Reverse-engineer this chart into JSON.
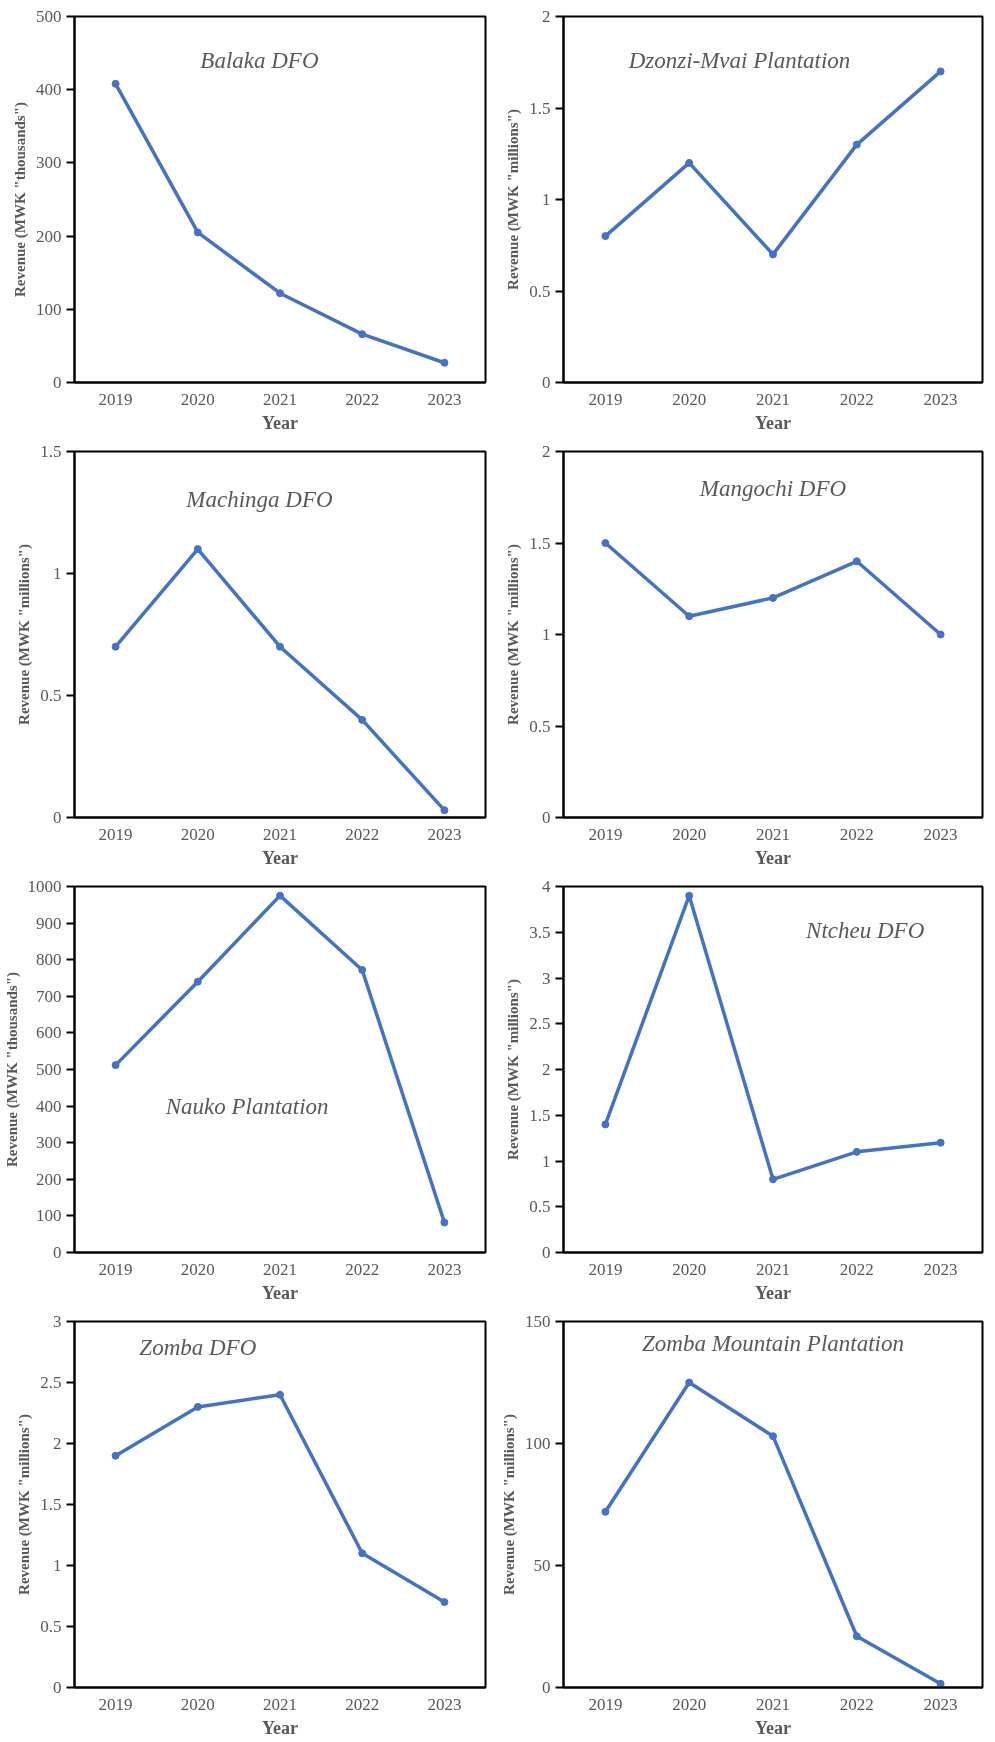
{
  "chart_data": [
    {
      "type": "line",
      "title": "Balaka DFO",
      "xlabel": "Year",
      "ylabel": "Revenue (MWK \"thousands\")",
      "categories": [
        "2019",
        "2020",
        "2021",
        "2022",
        "2023"
      ],
      "series": [
        {
          "color": "#4472c4",
          "values": [
            408,
            205,
            122,
            66,
            27
          ]
        }
      ],
      "ylim": [
        0,
        500
      ],
      "yticks": [
        0,
        100,
        200,
        300,
        400,
        500
      ],
      "marker": "circle",
      "grid": false
    },
    {
      "type": "line",
      "title": "Dzonzi-Mvai Plantation",
      "xlabel": "Year",
      "ylabel": "Revenue (MWK \"millions\")",
      "categories": [
        "2019",
        "2020",
        "2021",
        "2022",
        "2023"
      ],
      "series": [
        {
          "color": "#4472c4",
          "values": [
            0.8,
            1.2,
            0.7,
            1.3,
            1.7
          ]
        }
      ],
      "ylim": [
        0,
        2
      ],
      "yticks": [
        0,
        0.5,
        1,
        1.5,
        2
      ],
      "marker": "circle",
      "grid": false
    },
    {
      "type": "line",
      "title": "Machinga DFO",
      "xlabel": "Year",
      "ylabel": "Revenue (MWK \"millions\")",
      "categories": [
        "2019",
        "2020",
        "2021",
        "2022",
        "2023"
      ],
      "series": [
        {
          "color": "#4472c4",
          "values": [
            0.7,
            1.1,
            0.7,
            0.4,
            0.03
          ]
        }
      ],
      "ylim": [
        0,
        1.5
      ],
      "yticks": [
        0,
        0.5,
        1,
        1.5
      ],
      "marker": "circle",
      "grid": false
    },
    {
      "type": "line",
      "title": "Mangochi DFO",
      "xlabel": "Year",
      "ylabel": "Revenue (MWK \"millions\")",
      "categories": [
        "2019",
        "2020",
        "2021",
        "2022",
        "2023"
      ],
      "series": [
        {
          "color": "#4472c4",
          "values": [
            1.5,
            1.1,
            1.2,
            1.4,
            1.0
          ]
        }
      ],
      "ylim": [
        0,
        2
      ],
      "yticks": [
        0,
        0.5,
        1,
        1.5,
        2
      ],
      "marker": "circle",
      "grid": false
    },
    {
      "type": "line",
      "title": "Nauko Plantation",
      "xlabel": "Year",
      "ylabel": "Revenue (MWK \"thousands\")",
      "categories": [
        "2019",
        "2020",
        "2021",
        "2022",
        "2023"
      ],
      "series": [
        {
          "color": "#4472c4",
          "values": [
            512,
            740,
            975,
            772,
            82
          ]
        }
      ],
      "ylim": [
        0,
        1000
      ],
      "yticks": [
        0,
        100,
        200,
        300,
        400,
        500,
        600,
        700,
        800,
        900,
        1000
      ],
      "marker": "circle",
      "grid": false
    },
    {
      "type": "line",
      "title": "Ntcheu DFO",
      "xlabel": "Year",
      "ylabel": "Revenue (MWK \"millions\")",
      "categories": [
        "2019",
        "2020",
        "2021",
        "2022",
        "2023"
      ],
      "series": [
        {
          "color": "#4472c4",
          "values": [
            1.4,
            3.9,
            0.8,
            1.1,
            1.2
          ]
        }
      ],
      "ylim": [
        0,
        4
      ],
      "yticks": [
        0,
        0.5,
        1,
        1.5,
        2,
        2.5,
        3,
        3.5,
        4
      ],
      "marker": "circle",
      "grid": false
    },
    {
      "type": "line",
      "title": "Zomba DFO",
      "xlabel": "Year",
      "ylabel": "Revenue (MWK \"millions\")",
      "categories": [
        "2019",
        "2020",
        "2021",
        "2022",
        "2023"
      ],
      "series": [
        {
          "color": "#4472c4",
          "values": [
            1.9,
            2.3,
            2.4,
            1.1,
            0.7
          ]
        }
      ],
      "ylim": [
        0,
        3
      ],
      "yticks": [
        0,
        0.5,
        1,
        1.5,
        2,
        2.5,
        3
      ],
      "marker": "circle",
      "grid": false
    },
    {
      "type": "line",
      "title": "Zomba Mountain Plantation",
      "xlabel": "Year",
      "ylabel": "Revenue (MWK \"millions\")",
      "categories": [
        "2019",
        "2020",
        "2021",
        "2022",
        "2023"
      ],
      "series": [
        {
          "color": "#4472c4",
          "values": [
            72,
            125,
            103,
            21,
            1.5
          ]
        }
      ],
      "ylim": [
        0,
        150
      ],
      "yticks": [
        0,
        50,
        100,
        150
      ],
      "marker": "circle",
      "grid": false
    }
  ]
}
